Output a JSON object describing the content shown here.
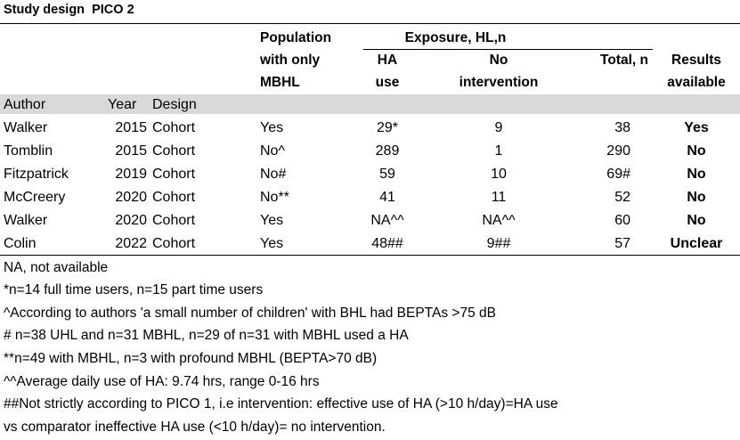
{
  "title": "Study design  PICO 2",
  "header": {
    "population_l1": "Population",
    "population_l2": "with only",
    "population_l3": "MBHL",
    "exposure": "Exposure, HL,n",
    "ha_l1": "HA",
    "ha_l2": "use",
    "noint_l1": "No",
    "noint_l2": "intervention",
    "total": "Total, n",
    "results_l1": "Results",
    "results_l2": "available"
  },
  "subheader": {
    "author": "Author",
    "year": "Year",
    "design": "Design"
  },
  "rows": [
    {
      "author": "Walker",
      "year": "2015",
      "design": "Cohort",
      "population": "Yes",
      "ha_use": "29*",
      "no_intervention": "9",
      "total": "38",
      "results": "Yes"
    },
    {
      "author": "Tomblin",
      "year": "2015",
      "design": "Cohort",
      "population": "No^",
      "ha_use": "289",
      "no_intervention": "1",
      "total": "290",
      "results": "No"
    },
    {
      "author": "Fitzpatrick",
      "year": "2019",
      "design": "Cohort",
      "population": "No#",
      "ha_use": "59",
      "no_intervention": "10",
      "total": "69#",
      "results": "No"
    },
    {
      "author": "McCreery",
      "year": "2020",
      "design": "Cohort",
      "population": "No**",
      "ha_use": "41",
      "no_intervention": "11",
      "total": "52",
      "results": "No"
    },
    {
      "author": "Walker",
      "year": "2020",
      "design": "Cohort",
      "population": "Yes",
      "ha_use": "NA^^",
      "no_intervention": "NA^^",
      "total": "60",
      "results": "No"
    },
    {
      "author": "Colin",
      "year": "2022",
      "design": "Cohort",
      "population": "Yes",
      "ha_use": "48##",
      "no_intervention": "9##",
      "total": "57",
      "results": "Unclear"
    }
  ],
  "notes": [
    "NA, not available",
    "*n=14 full time users, n=15 part time users",
    "^According to authors 'a small number of children' with BHL had BEPTAs >75 dB",
    "# n=38 UHL and n=31 MBHL, n=29 of n=31 with MBHL used a HA",
    "**n=49 with MBHL, n=3 with profound MBHL (BEPTA>70 dB)",
    "^^Average daily use of HA: 9.74 hrs, range 0-16 hrs",
    "##Not strictly according to PICO 1, i.e intervention: effective use of HA (>10 h/day)=HA use",
    "vs comparator ineffective HA use  (<10 h/day)= no intervention."
  ]
}
